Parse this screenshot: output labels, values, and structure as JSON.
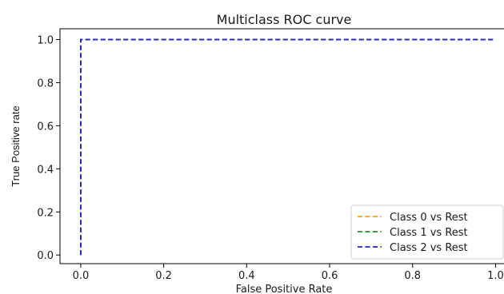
{
  "chart_data": {
    "type": "line",
    "title": "Multiclass ROC curve",
    "xlabel": "False Positive Rate",
    "ylabel": "True Positive rate",
    "xlim": [
      -0.05,
      1.03
    ],
    "ylim": [
      -0.04,
      1.05
    ],
    "xticks": [
      0.0,
      0.2,
      0.4,
      0.6,
      0.8,
      1.0
    ],
    "xtick_labels": [
      "0.0",
      "0.2",
      "0.4",
      "0.6",
      "0.8",
      "1.0"
    ],
    "yticks": [
      0.0,
      0.2,
      0.4,
      0.6,
      0.8,
      1.0
    ],
    "ytick_labels": [
      "0.0",
      "0.2",
      "0.4",
      "0.6",
      "0.8",
      "1.0"
    ],
    "grid": false,
    "legend_position": "bottom-right",
    "series": [
      {
        "name": "Class 0 vs Rest",
        "color": "#ffa500",
        "dash": "dashed",
        "x": [
          0.0,
          0.0,
          1.0
        ],
        "y": [
          0.0,
          1.0,
          1.0
        ]
      },
      {
        "name": "Class 1 vs Rest",
        "color": "#1f8f1f",
        "dash": "dashed",
        "x": [
          0.0,
          0.0,
          1.0
        ],
        "y": [
          0.0,
          1.0,
          1.0
        ]
      },
      {
        "name": "Class 2 vs Rest",
        "color": "#1f1fd6",
        "dash": "dashed",
        "x": [
          0.0,
          0.0,
          1.0
        ],
        "y": [
          0.0,
          1.0,
          1.0
        ]
      }
    ]
  }
}
